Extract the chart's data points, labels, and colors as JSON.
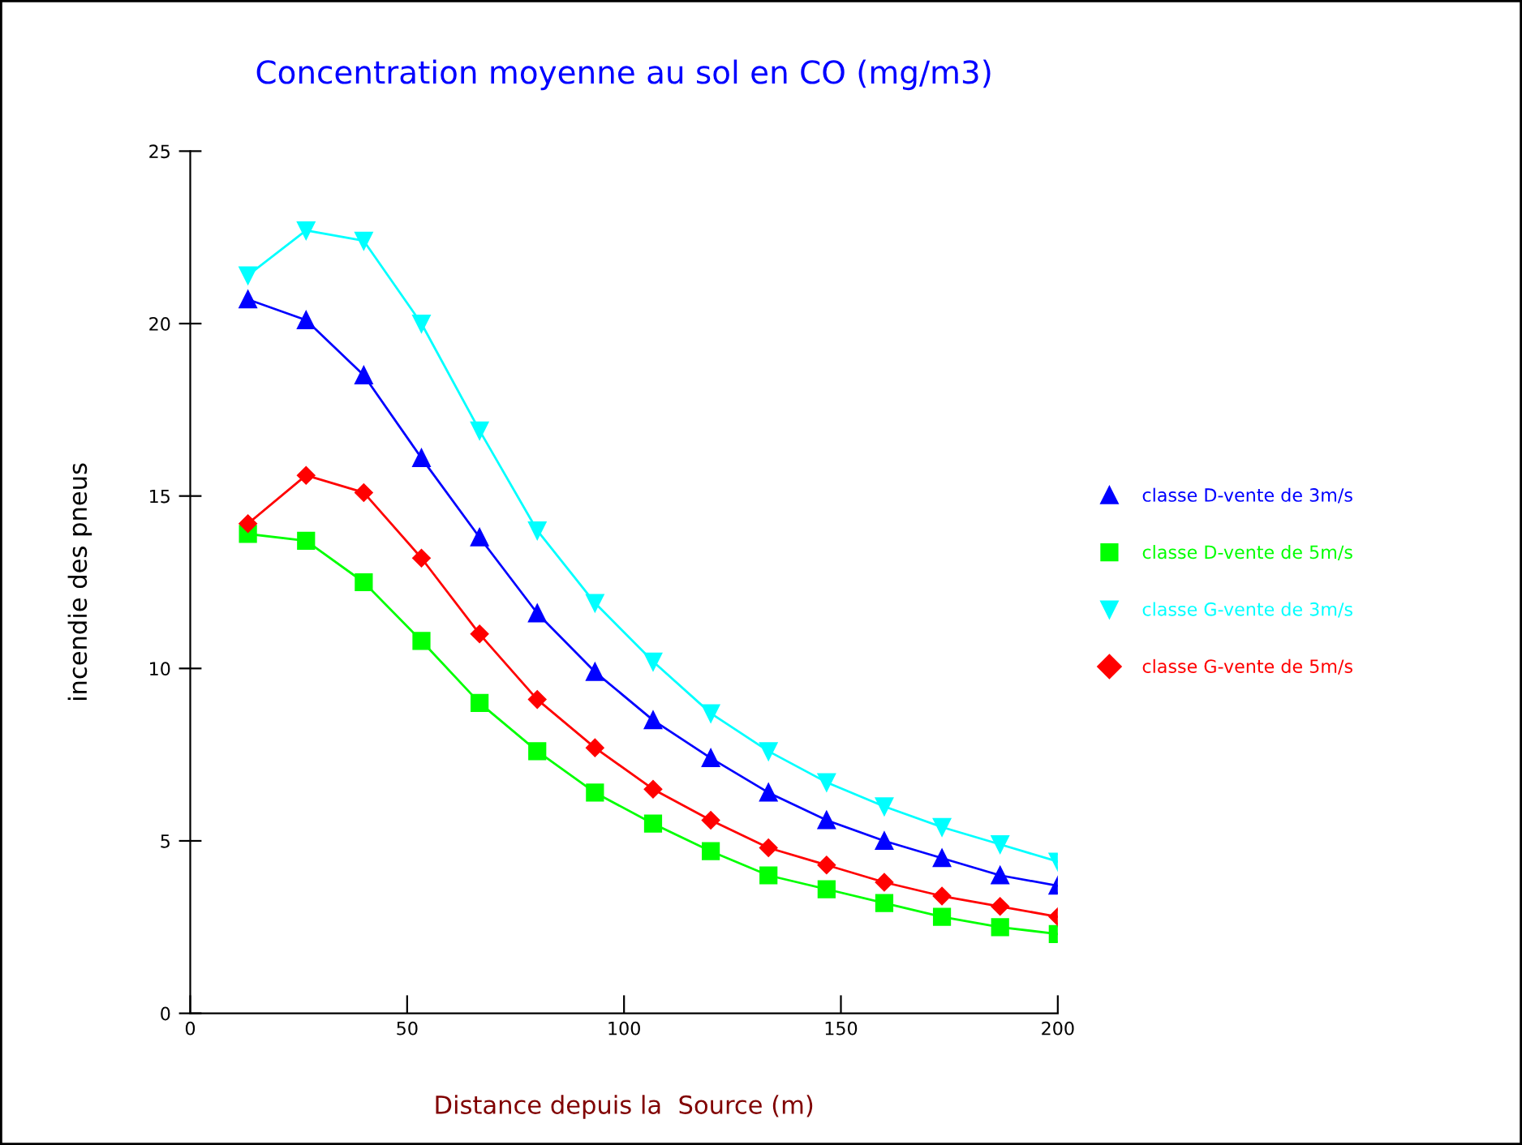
{
  "chart_data": {
    "type": "line",
    "title": "Concentration moyenne au sol en CO (mg/m3)",
    "xlabel": "Distance depuis la  Source (m)",
    "ylabel": "incendie des pneus",
    "x": [
      13.3,
      26.7,
      40,
      53.3,
      66.7,
      80,
      93.3,
      106.7,
      120,
      133.3,
      146.7,
      160,
      173.3,
      186.7,
      200
    ],
    "series": [
      {
        "name": "classe D-vente de 3m/s",
        "color": "#0000ff",
        "marker": "triangle",
        "values": [
          20.7,
          20.1,
          18.5,
          16.1,
          13.8,
          11.6,
          9.9,
          8.5,
          7.4,
          6.4,
          5.6,
          5.0,
          4.5,
          4.0,
          3.7
        ]
      },
      {
        "name": "classe D-vente de 5m/s",
        "color": "#00ff00",
        "marker": "square",
        "values": [
          13.9,
          13.7,
          12.5,
          10.8,
          9.0,
          7.6,
          6.4,
          5.5,
          4.7,
          4.0,
          3.6,
          3.2,
          2.8,
          2.5,
          2.3
        ]
      },
      {
        "name": "classe G-vente de 3m/s",
        "color": "#00ffff",
        "marker": "triangle_down",
        "values": [
          21.4,
          22.7,
          22.4,
          20.0,
          16.9,
          14.0,
          11.9,
          10.2,
          8.7,
          7.6,
          6.7,
          6.0,
          5.4,
          4.9,
          4.4
        ]
      },
      {
        "name": "classe G-vente de 5m/s",
        "color": "#ff0000",
        "marker": "diamond",
        "values": [
          14.2,
          15.6,
          15.1,
          13.2,
          11.0,
          9.1,
          7.7,
          6.5,
          5.6,
          4.8,
          4.3,
          3.8,
          3.4,
          3.1,
          2.8
        ]
      }
    ],
    "xlim": [
      0,
      200
    ],
    "xticks": [
      0,
      50,
      100,
      150,
      200
    ],
    "ylim": [
      0,
      25
    ],
    "yticks": [
      0,
      5,
      10,
      15,
      20,
      25
    ],
    "grid": false,
    "legend": "right",
    "line_style": "solid"
  }
}
